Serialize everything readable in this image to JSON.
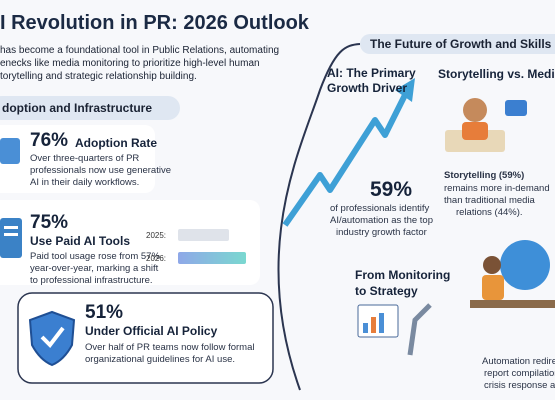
{
  "header": {
    "title": "I Revolution in PR: 2026 Outlook",
    "intro": [
      "has become a foundational tool in Public Relations, automating",
      "enecks like media monitoring to prioritize high-level human",
      "torytelling and strategic relationship building."
    ]
  },
  "left": {
    "section": "doption and Infrastructure",
    "stats": [
      {
        "value": "76%",
        "label": "Adoption Rate",
        "desc": [
          "Over three-quarters of PR",
          "professionals now use generative",
          "AI in their daily workflows."
        ]
      },
      {
        "value": "75%",
        "label": "Use Paid AI Tools",
        "desc": [
          "Paid tool usage rose from 57%",
          "year-over-year, marking a shift",
          "to professional infrastructure."
        ],
        "bars": [
          {
            "label": "2025:",
            "value": 57
          },
          {
            "label": "2026:",
            "value": 75
          }
        ]
      },
      {
        "value": "51%",
        "label": "Under Official AI Policy",
        "desc": [
          "Over half of PR teams now follow formal",
          "organizational guidelines for AI use."
        ]
      }
    ]
  },
  "right": {
    "banner": "The Future of Growth and Skills",
    "driver": {
      "title": [
        "AI: The Primary",
        "Growth Driver"
      ],
      "value": "59%",
      "desc": [
        "of professionals identify",
        "AI/automation as the top",
        "industry growth factor"
      ]
    },
    "storytelling": {
      "title": "Storytelling vs. Media",
      "lead": "Storytelling (59%)",
      "desc": [
        "remains more in-demand",
        "than traditional media",
        "relations (44%)."
      ]
    },
    "monitoring": {
      "title": [
        "From Monitoring",
        "to Strategy"
      ],
      "desc": [
        "Automation redirects",
        "report compilation",
        "crisis response and"
      ]
    }
  }
}
